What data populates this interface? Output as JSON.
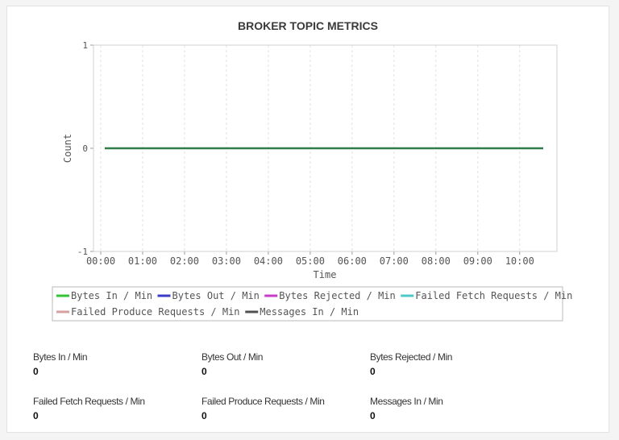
{
  "chart_data": {
    "type": "line",
    "title": "BROKER TOPIC METRICS",
    "xlabel": "Time",
    "ylabel": "Count",
    "x": [
      "00:00",
      "01:00",
      "02:00",
      "03:00",
      "04:00",
      "05:00",
      "06:00",
      "07:00",
      "08:00",
      "09:00",
      "10:00"
    ],
    "xlim": [
      "00:00",
      "10:43"
    ],
    "ylim": [
      -1,
      1
    ],
    "yticks": [
      "-1",
      "0",
      "1"
    ],
    "grid": true,
    "legend_position": "bottom",
    "series": [
      {
        "name": "Bytes In / Min",
        "color": "#33c433",
        "values": [
          0,
          0,
          0,
          0,
          0,
          0,
          0,
          0,
          0,
          0,
          0
        ]
      },
      {
        "name": "Bytes Out / Min",
        "color": "#3a3ac8",
        "values": [
          0,
          0,
          0,
          0,
          0,
          0,
          0,
          0,
          0,
          0,
          0
        ]
      },
      {
        "name": "Bytes Rejected / Min",
        "color": "#c83ac8",
        "values": [
          0,
          0,
          0,
          0,
          0,
          0,
          0,
          0,
          0,
          0,
          0
        ]
      },
      {
        "name": "Failed Fetch Requests / Min",
        "color": "#4cc8c8",
        "values": [
          0,
          0,
          0,
          0,
          0,
          0,
          0,
          0,
          0,
          0,
          0
        ]
      },
      {
        "name": "Failed Produce Requests / Min",
        "color": "#d4a0a0",
        "values": [
          0,
          0,
          0,
          0,
          0,
          0,
          0,
          0,
          0,
          0,
          0
        ]
      },
      {
        "name": "Messages In / Min",
        "color": "#505050",
        "values": [
          0,
          0,
          0,
          0,
          0,
          0,
          0,
          0,
          0,
          0,
          0
        ]
      }
    ]
  },
  "stats": [
    {
      "label": "Bytes In / Min",
      "value": "0"
    },
    {
      "label": "Bytes Out / Min",
      "value": "0"
    },
    {
      "label": "Bytes Rejected / Min",
      "value": "0"
    },
    {
      "label": "Failed Fetch Requests / Min",
      "value": "0"
    },
    {
      "label": "Failed Produce Requests / Min",
      "value": "0"
    },
    {
      "label": "Messages In / Min",
      "value": "0"
    }
  ]
}
